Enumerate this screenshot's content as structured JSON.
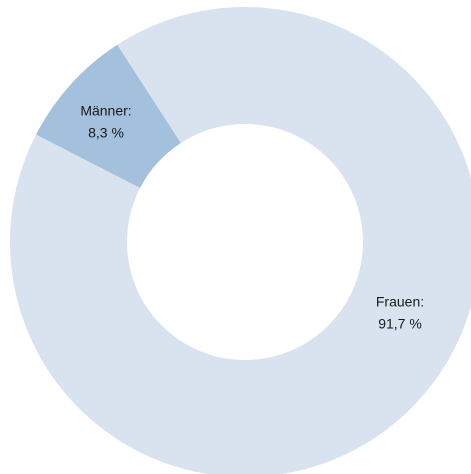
{
  "chart_data": {
    "type": "donut",
    "categories": [
      "Männer:",
      "Frauen:"
    ],
    "values": [
      8.3,
      91.7
    ],
    "value_labels": [
      "8,3 %",
      "91,7 %"
    ],
    "colors": [
      "#a3c0dc",
      "#d9e3f0"
    ]
  }
}
